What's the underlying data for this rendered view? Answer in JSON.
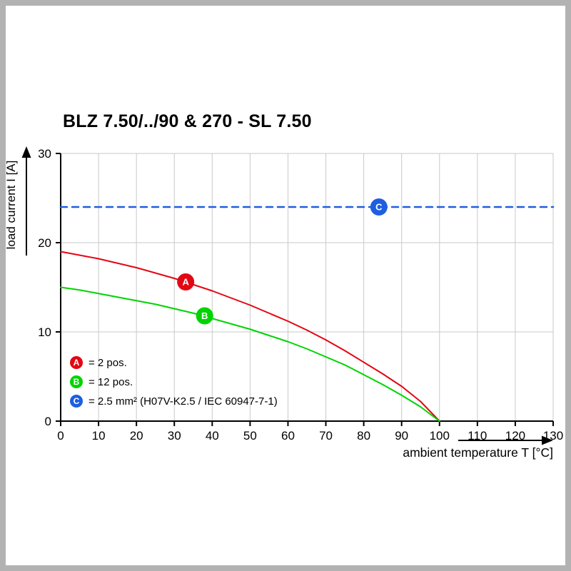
{
  "chart_data": {
    "type": "line",
    "title": "BLZ 7.50/../90 & 270 - SL 7.50",
    "xlabel": "ambient temperature T [°C]",
    "ylabel": "load current I [A]",
    "xlim": [
      0,
      130
    ],
    "ylim": [
      0,
      30
    ],
    "x_ticks": [
      0,
      10,
      20,
      30,
      40,
      50,
      60,
      70,
      80,
      90,
      100,
      110,
      120,
      130
    ],
    "y_ticks": [
      0,
      10,
      20,
      30
    ],
    "grid": true,
    "grid_color": "#c9c9c9",
    "axis_color": "#000000",
    "series": [
      {
        "name": "A",
        "legend": "= 2 pos.",
        "color": "#e30613",
        "line_style": "solid",
        "x": [
          0,
          5,
          10,
          15,
          20,
          25,
          30,
          35,
          40,
          45,
          50,
          55,
          60,
          65,
          70,
          75,
          80,
          85,
          90,
          95,
          100
        ],
        "y": [
          19.0,
          18.6,
          18.2,
          17.7,
          17.2,
          16.6,
          16.0,
          15.3,
          14.6,
          13.8,
          13.0,
          12.1,
          11.2,
          10.2,
          9.1,
          7.9,
          6.6,
          5.3,
          3.9,
          2.2,
          0
        ],
        "marker": {
          "x": 33,
          "y": 15.6
        }
      },
      {
        "name": "B",
        "legend": "= 12 pos.",
        "color": "#00d400",
        "line_style": "solid",
        "x": [
          0,
          5,
          10,
          15,
          20,
          25,
          30,
          35,
          40,
          45,
          50,
          55,
          60,
          65,
          70,
          75,
          80,
          85,
          90,
          95,
          100
        ],
        "y": [
          15.0,
          14.7,
          14.3,
          13.9,
          13.5,
          13.1,
          12.6,
          12.1,
          11.5,
          10.9,
          10.3,
          9.6,
          8.9,
          8.1,
          7.2,
          6.3,
          5.2,
          4.1,
          2.9,
          1.6,
          0
        ],
        "marker": {
          "x": 38,
          "y": 11.8
        }
      },
      {
        "name": "C",
        "legend": "= 2.5 mm² (H07V-K2.5 / IEC 60947-7-1)",
        "color": "#1d5fe0",
        "line_style": "dashed",
        "x": [
          0,
          130
        ],
        "y": [
          24,
          24
        ],
        "marker": {
          "x": 84,
          "y": 24
        }
      }
    ]
  }
}
